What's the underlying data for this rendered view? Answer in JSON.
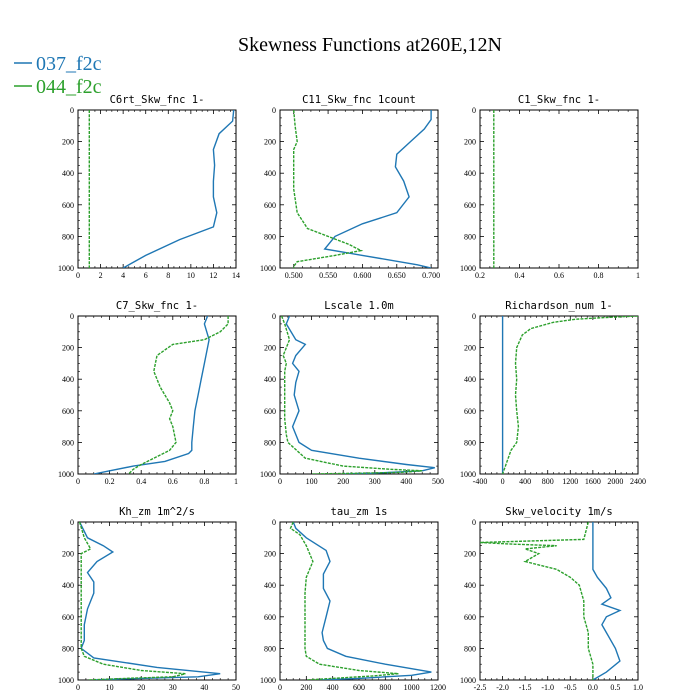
{
  "title": "Skewness Functions at260E,12N",
  "legend": [
    {
      "label": "037_f2c",
      "color": "#1f77b4"
    },
    {
      "label": "044_f2c",
      "color": "#2ca02c"
    }
  ],
  "chart_data": [
    {
      "type": "line",
      "title": "C6rt_Skw_fnc   1-",
      "xlim": [
        0,
        14
      ],
      "ylim": [
        1000,
        0
      ],
      "xticks": [
        0,
        2,
        4,
        6,
        8,
        10,
        12,
        14
      ],
      "yticks": [
        0,
        200,
        400,
        600,
        800,
        1000
      ],
      "series": [
        {
          "name": "037_f2c",
          "x": [
            13.8,
            13.7,
            12.5,
            12.0,
            12.1,
            12.0,
            12.0,
            12.3,
            12.0,
            9.0,
            6.0,
            4.0
          ],
          "y": [
            0,
            70,
            150,
            250,
            350,
            450,
            550,
            650,
            740,
            820,
            920,
            1000
          ]
        },
        {
          "name": "044_f2c",
          "x": [
            1.0,
            1.0
          ],
          "y": [
            0,
            1000
          ]
        }
      ]
    },
    {
      "type": "line",
      "title": "C11_Skw_fnc   1count",
      "xlim": [
        0.48,
        0.71
      ],
      "ylim": [
        1000,
        0
      ],
      "xticks": [
        0.5,
        0.55,
        0.6,
        0.65,
        0.7
      ],
      "xtick_labels": [
        "0.500",
        "0.550",
        "0.600",
        "0.650",
        "0.700"
      ],
      "yticks": [
        0,
        200,
        400,
        600,
        800,
        1000
      ],
      "series": [
        {
          "name": "037_f2c",
          "x": [
            0.7,
            0.7,
            0.69,
            0.67,
            0.65,
            0.648,
            0.66,
            0.668,
            0.65,
            0.6,
            0.56,
            0.545,
            0.6,
            0.68,
            0.7
          ],
          "y": [
            0,
            60,
            120,
            200,
            280,
            360,
            450,
            550,
            650,
            720,
            800,
            880,
            920,
            980,
            1000
          ]
        },
        {
          "name": "044_f2c",
          "x": [
            0.5,
            0.502,
            0.505,
            0.5,
            0.5,
            0.5,
            0.505,
            0.52,
            0.55,
            0.58,
            0.598,
            0.56,
            0.505,
            0.5,
            0.5
          ],
          "y": [
            0,
            100,
            200,
            250,
            350,
            500,
            650,
            750,
            800,
            850,
            890,
            920,
            960,
            990,
            1000
          ]
        }
      ]
    },
    {
      "type": "line",
      "title": "C1_Skw_fnc   1-",
      "xlim": [
        0.2,
        1.0
      ],
      "ylim": [
        1000,
        0
      ],
      "xticks": [
        0.2,
        0.4,
        0.6,
        0.8,
        1.0
      ],
      "yticks": [
        0,
        200,
        400,
        600,
        800,
        1000
      ],
      "series": [
        {
          "name": "044_f2c",
          "x": [
            0.27,
            0.27
          ],
          "y": [
            0,
            1000
          ]
        }
      ]
    },
    {
      "type": "line",
      "title": "C7_Skw_fnc   1-",
      "xlim": [
        0.0,
        1.0
      ],
      "ylim": [
        1000,
        0
      ],
      "xticks": [
        0.0,
        0.2,
        0.4,
        0.6,
        0.8,
        1.0
      ],
      "yticks": [
        0,
        200,
        400,
        600,
        800,
        1000
      ],
      "series": [
        {
          "name": "037_f2c",
          "x": [
            0.82,
            0.8,
            0.83,
            0.8,
            0.78,
            0.76,
            0.74,
            0.73,
            0.72,
            0.72,
            0.7,
            0.55,
            0.35,
            0.2,
            0.1
          ],
          "y": [
            0,
            50,
            150,
            300,
            400,
            500,
            600,
            700,
            800,
            850,
            870,
            920,
            950,
            980,
            1000
          ]
        },
        {
          "name": "044_f2c",
          "x": [
            0.95,
            0.95,
            0.9,
            0.8,
            0.6,
            0.5,
            0.48,
            0.52,
            0.58,
            0.6,
            0.58,
            0.6,
            0.62,
            0.58,
            0.48,
            0.4,
            0.35,
            0.32
          ],
          "y": [
            0,
            50,
            100,
            150,
            180,
            250,
            350,
            450,
            550,
            600,
            650,
            700,
            800,
            850,
            900,
            940,
            970,
            1000
          ]
        }
      ]
    },
    {
      "type": "line",
      "title": "Lscale   1.0m",
      "xlim": [
        0,
        500
      ],
      "ylim": [
        1000,
        0
      ],
      "xticks": [
        0,
        100,
        200,
        300,
        400,
        500
      ],
      "yticks": [
        0,
        200,
        400,
        600,
        800,
        1000
      ],
      "series": [
        {
          "name": "037_f2c",
          "x": [
            30,
            20,
            50,
            80,
            50,
            40,
            60,
            50,
            45,
            60,
            40,
            60,
            100,
            250,
            400,
            490,
            450,
            300,
            200
          ],
          "y": [
            0,
            50,
            150,
            180,
            250,
            300,
            350,
            420,
            500,
            600,
            700,
            800,
            850,
            900,
            940,
            960,
            980,
            995,
            1000
          ]
        },
        {
          "name": "044_f2c",
          "x": [
            5,
            15,
            30,
            10,
            20,
            15,
            15,
            15,
            15,
            20,
            25,
            80,
            200,
            350,
            450,
            380,
            250,
            150,
            100
          ],
          "y": [
            0,
            50,
            150,
            250,
            300,
            350,
            450,
            550,
            650,
            750,
            800,
            900,
            950,
            970,
            980,
            990,
            995,
            998,
            1000
          ]
        }
      ]
    },
    {
      "type": "line",
      "title": "Richardson_num   1-",
      "xlim": [
        -400,
        2400
      ],
      "ylim": [
        1000,
        0
      ],
      "xticks": [
        -400,
        0,
        400,
        800,
        1200,
        1600,
        2000,
        2400
      ],
      "yticks": [
        0,
        200,
        400,
        600,
        800,
        1000
      ],
      "series": [
        {
          "name": "037_f2c",
          "x": [
            0,
            0
          ],
          "y": [
            0,
            1000
          ]
        },
        {
          "name": "044_f2c",
          "x": [
            2400,
            1800,
            1300,
            900,
            500,
            350,
            250,
            230,
            250,
            230,
            250,
            280,
            250,
            150,
            50,
            0
          ],
          "y": [
            0,
            10,
            20,
            40,
            80,
            120,
            200,
            300,
            400,
            500,
            600,
            700,
            800,
            850,
            950,
            1000
          ]
        }
      ]
    },
    {
      "type": "line",
      "title": "Kh_zm   1m^2/s",
      "xlim": [
        0,
        50
      ],
      "ylim": [
        1000,
        0
      ],
      "xticks": [
        0,
        10,
        20,
        30,
        40,
        50
      ],
      "yticks": [
        0,
        200,
        400,
        600,
        800,
        1000
      ],
      "series": [
        {
          "name": "037_f2c",
          "x": [
            0.5,
            3,
            8,
            11,
            6,
            3,
            5,
            5,
            3,
            2,
            2,
            1,
            5,
            25,
            45,
            38,
            20,
            5
          ],
          "y": [
            0,
            100,
            150,
            190,
            250,
            320,
            380,
            450,
            550,
            650,
            750,
            800,
            860,
            920,
            960,
            980,
            990,
            1000
          ]
        },
        {
          "name": "044_f2c",
          "x": [
            0.5,
            2,
            4,
            1,
            1,
            1,
            1,
            1,
            1,
            1,
            2,
            8,
            20,
            34,
            30,
            15,
            3
          ],
          "y": [
            0,
            100,
            170,
            200,
            300,
            400,
            500,
            600,
            700,
            800,
            850,
            900,
            940,
            960,
            980,
            990,
            1000
          ]
        }
      ]
    },
    {
      "type": "line",
      "title": "tau_zm   1s",
      "xlim": [
        0,
        1200
      ],
      "ylim": [
        1000,
        0
      ],
      "xticks": [
        0,
        200,
        400,
        600,
        800,
        1000,
        1200
      ],
      "yticks": [
        0,
        200,
        400,
        600,
        800,
        1000
      ],
      "series": [
        {
          "name": "037_f2c",
          "x": [
            100,
            120,
            200,
            350,
            380,
            330,
            330,
            380,
            350,
            320,
            330,
            360,
            500,
            800,
            1150,
            1000,
            600,
            300
          ],
          "y": [
            0,
            40,
            100,
            180,
            250,
            330,
            420,
            500,
            600,
            700,
            750,
            800,
            850,
            900,
            950,
            970,
            990,
            1000
          ]
        },
        {
          "name": "044_f2c",
          "x": [
            100,
            80,
            150,
            200,
            250,
            200,
            190,
            190,
            190,
            190,
            190,
            200,
            300,
            600,
            900,
            700,
            400,
            200
          ],
          "y": [
            0,
            40,
            80,
            150,
            250,
            350,
            450,
            550,
            650,
            750,
            800,
            850,
            900,
            940,
            960,
            975,
            990,
            1000
          ]
        }
      ]
    },
    {
      "type": "line",
      "title": "Skw_velocity   1m/s",
      "xlim": [
        -2.5,
        1.0
      ],
      "ylim": [
        1000,
        0
      ],
      "xticks": [
        -2.5,
        -2.0,
        -1.5,
        -1.0,
        -0.5,
        0.0,
        0.5,
        1.0
      ],
      "xtick_labels": [
        "-2.5",
        "-2.0",
        "-1.5",
        "-1.0",
        "-0.5",
        "0.0",
        "0.5",
        "1.0"
      ],
      "yticks": [
        0,
        200,
        400,
        600,
        800,
        1000
      ],
      "series": [
        {
          "name": "037_f2c",
          "x": [
            0.0,
            0.0,
            0.0,
            0.1,
            0.3,
            0.4,
            0.2,
            0.6,
            0.3,
            0.2,
            0.3,
            0.5,
            0.6,
            0.3,
            0.0
          ],
          "y": [
            0,
            150,
            300,
            350,
            420,
            480,
            520,
            560,
            600,
            650,
            700,
            800,
            880,
            950,
            1000
          ]
        },
        {
          "name": "044_f2c",
          "x": [
            -0.1,
            -0.2,
            -2.5,
            -1.8,
            -0.8,
            -1.5,
            -1.2,
            -1.5,
            -0.8,
            -0.5,
            -0.3,
            -0.2,
            -0.2,
            -0.1,
            -0.1,
            0.0,
            0.0
          ],
          "y": [
            0,
            110,
            130,
            140,
            150,
            170,
            200,
            250,
            300,
            350,
            400,
            500,
            600,
            700,
            800,
            900,
            1000
          ]
        }
      ]
    }
  ]
}
